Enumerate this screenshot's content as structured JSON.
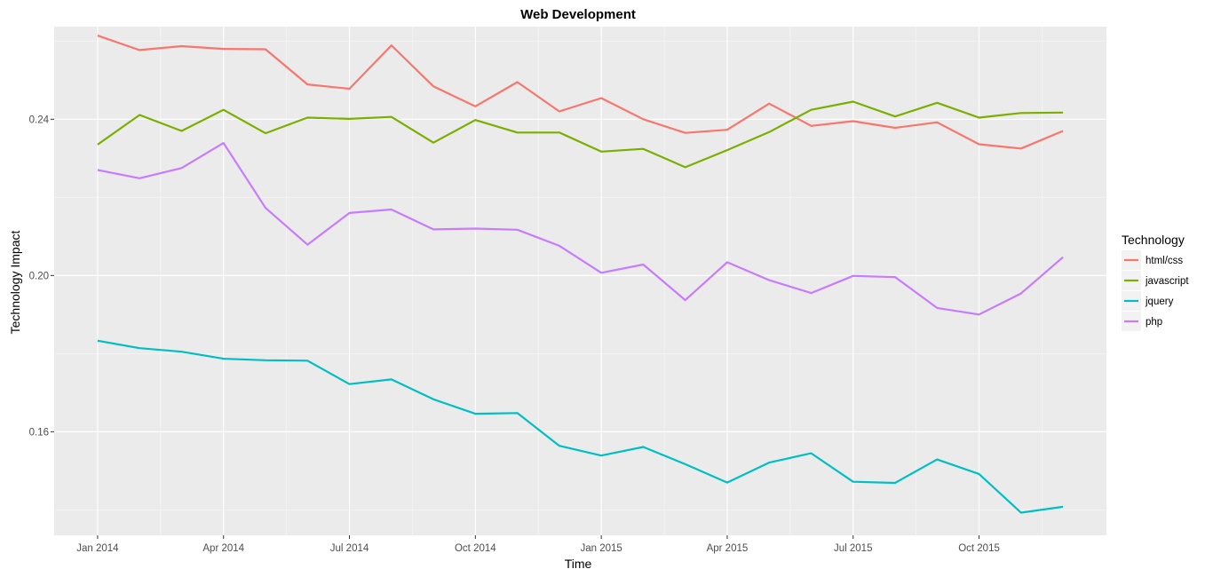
{
  "chart_data": {
    "type": "line",
    "title": "Web Development",
    "xlabel": "Time",
    "ylabel": "Technology Impact",
    "x": [
      "2014-01",
      "2014-02",
      "2014-03",
      "2014-04",
      "2014-05",
      "2014-06",
      "2014-07",
      "2014-08",
      "2014-09",
      "2014-10",
      "2014-11",
      "2014-12",
      "2015-01",
      "2015-02",
      "2015-03",
      "2015-04",
      "2015-05",
      "2015-06",
      "2015-07",
      "2015-08",
      "2015-09",
      "2015-10",
      "2015-11",
      "2015-12"
    ],
    "x_ticks": [
      {
        "date": "2014-01",
        "label": "Jan 2014"
      },
      {
        "date": "2014-04",
        "label": "Apr 2014"
      },
      {
        "date": "2014-07",
        "label": "Jul 2014"
      },
      {
        "date": "2014-10",
        "label": "Oct 2014"
      },
      {
        "date": "2015-01",
        "label": "Jan 2015"
      },
      {
        "date": "2015-04",
        "label": "Apr 2015"
      },
      {
        "date": "2015-07",
        "label": "Jul 2015"
      },
      {
        "date": "2015-10",
        "label": "Oct 2015"
      }
    ],
    "y_ticks": [
      {
        "value": 0.16,
        "label": "0.16"
      },
      {
        "value": 0.2,
        "label": "0.20"
      },
      {
        "value": 0.24,
        "label": "0.24"
      }
    ],
    "ylim": [
      0.1335,
      0.2637
    ],
    "grid": true,
    "legend": {
      "title": "Technology",
      "position": "right"
    },
    "series": [
      {
        "name": "html/css",
        "color": "#F8766D",
        "values": [
          0.2614,
          0.2577,
          0.2587,
          0.258,
          0.2579,
          0.2489,
          0.2478,
          0.2589,
          0.2484,
          0.2433,
          0.2495,
          0.242,
          0.2454,
          0.24,
          0.2365,
          0.2373,
          0.244,
          0.2383,
          0.2395,
          0.2378,
          0.2392,
          0.2336,
          0.2325,
          0.237
        ]
      },
      {
        "name": "javascript",
        "color": "#7CAE00",
        "values": [
          0.2335,
          0.2411,
          0.237,
          0.2424,
          0.2364,
          0.2404,
          0.2401,
          0.2406,
          0.234,
          0.2398,
          0.2366,
          0.2366,
          0.2317,
          0.2324,
          0.2277,
          0.2321,
          0.2367,
          0.2424,
          0.2445,
          0.2407,
          0.2442,
          0.2404,
          0.2416,
          0.2417
        ]
      },
      {
        "name": "jquery",
        "color": "#00BFC4",
        "values": [
          0.1833,
          0.1814,
          0.1805,
          0.1787,
          0.1783,
          0.1782,
          0.1722,
          0.1734,
          0.1683,
          0.1646,
          0.1648,
          0.1564,
          0.1539,
          0.1561,
          0.1517,
          0.147,
          0.1521,
          0.1545,
          0.1472,
          0.1469,
          0.1529,
          0.1492,
          0.1393,
          0.1408
        ]
      },
      {
        "name": "php",
        "color": "#C77CFF",
        "values": [
          0.227,
          0.2249,
          0.2275,
          0.2339,
          0.2173,
          0.2079,
          0.216,
          0.2169,
          0.2118,
          0.212,
          0.2117,
          0.2076,
          0.2007,
          0.2028,
          0.1937,
          0.2034,
          0.1988,
          0.1955,
          0.1999,
          0.1996,
          0.1917,
          0.19,
          0.1954,
          0.2047
        ]
      }
    ]
  }
}
